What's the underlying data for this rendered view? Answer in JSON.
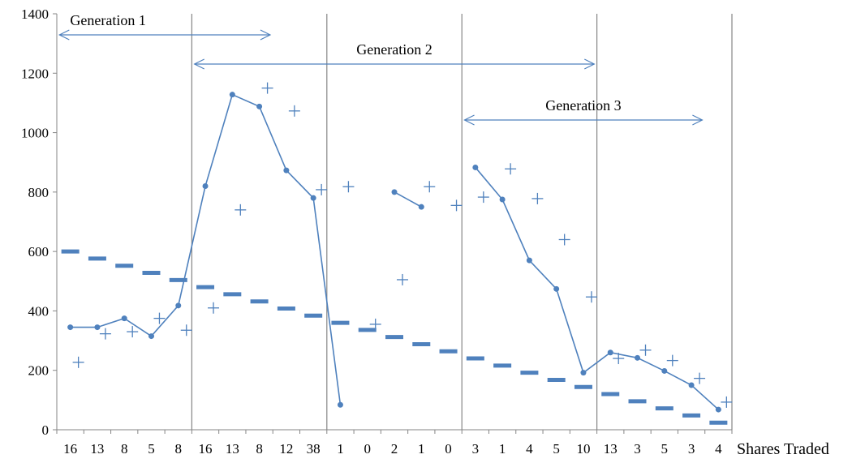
{
  "chart_data": {
    "type": "line",
    "xlabel": "Shares Traded",
    "ylabel": "",
    "title": "",
    "ylim": [
      0,
      1400
    ],
    "yticks": [
      0,
      200,
      400,
      600,
      800,
      1000,
      1200,
      1400
    ],
    "grid": false,
    "categories": [
      "16",
      "13",
      "8",
      "5",
      "8",
      "16",
      "13",
      "8",
      "12",
      "38",
      "1",
      "0",
      "2",
      "1",
      "0",
      "3",
      "1",
      "4",
      "5",
      "10",
      "13",
      "3",
      "5",
      "3",
      "4"
    ],
    "group_boundaries_after_index": [
      4,
      9,
      14,
      19
    ],
    "generations": [
      {
        "label": "Generation 1",
        "from": 0.1,
        "to": 7.9
      },
      {
        "label": "Generation 2",
        "from": 5.1,
        "to": 19.9
      },
      {
        "label": "Generation 3",
        "from": 15.1,
        "to": 23.9
      }
    ],
    "series": [
      {
        "style": "line-circle",
        "color": "#4f81bd",
        "values": [
          345,
          345,
          375,
          315,
          418,
          820,
          1128,
          1088,
          873,
          780,
          84,
          null,
          800,
          750,
          null,
          883,
          775,
          570,
          474,
          192,
          260,
          242,
          198,
          150,
          68
        ]
      },
      {
        "style": "plus",
        "color": "#4f81bd",
        "values": [
          227,
          323,
          330,
          375,
          335,
          410,
          740,
          1150,
          1073,
          808,
          818,
          355,
          505,
          818,
          755,
          783,
          878,
          778,
          640,
          447,
          240,
          268,
          233,
          173,
          93
        ]
      },
      {
        "style": "dash",
        "color": "#4f81bd",
        "values": [
          600,
          576,
          552,
          528,
          504,
          480,
          456,
          432,
          408,
          384,
          360,
          336,
          312,
          288,
          264,
          240,
          216,
          192,
          168,
          144,
          120,
          96,
          72,
          48,
          24
        ]
      }
    ]
  }
}
